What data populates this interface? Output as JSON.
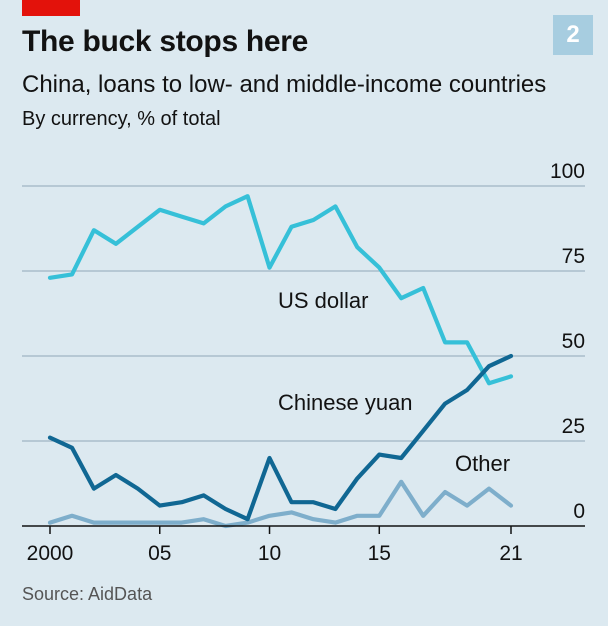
{
  "header": {
    "title": "The buck stops here",
    "subtitle": "China, loans to low- and middle-income countries",
    "unit_note": "By currency, % of total",
    "badge": "2"
  },
  "footer": {
    "source": "Source: AidData"
  },
  "colors": {
    "us_dollar": "#36c0d8",
    "chinese_yuan": "#106793",
    "other": "#7eaecb",
    "gridline": "#9fb5c2",
    "axis": "#121212",
    "brand_red": "#e3120b"
  },
  "chart_data": {
    "type": "line",
    "title": "The buck stops here",
    "subtitle": "China, loans to low- and middle-income countries",
    "ylabel": "By currency, % of total",
    "xlabel": "",
    "x": [
      2000,
      2001,
      2002,
      2003,
      2004,
      2005,
      2006,
      2007,
      2008,
      2009,
      2010,
      2011,
      2012,
      2013,
      2014,
      2015,
      2016,
      2017,
      2018,
      2019,
      2020,
      2021
    ],
    "xticks": [
      2000,
      2005,
      2010,
      2015,
      2021
    ],
    "xtick_labels": [
      "2000",
      "05",
      "10",
      "15",
      "21"
    ],
    "ylim": [
      0,
      100
    ],
    "yticks": [
      0,
      25,
      50,
      75,
      100
    ],
    "ytick_labels": [
      "0",
      "25",
      "50",
      "75",
      "100"
    ],
    "grid": true,
    "series": [
      {
        "name": "US dollar",
        "color": "#36c0d8",
        "values": [
          73,
          74,
          87,
          83,
          88,
          93,
          91,
          89,
          94,
          97,
          76,
          88,
          90,
          94,
          82,
          76,
          67,
          70,
          54,
          54,
          42,
          44
        ]
      },
      {
        "name": "Chinese yuan",
        "color": "#106793",
        "values": [
          26,
          23,
          11,
          15,
          11,
          6,
          7,
          9,
          5,
          2,
          20,
          7,
          7,
          5,
          14,
          21,
          20,
          28,
          36,
          40,
          47,
          50
        ]
      },
      {
        "name": "Other",
        "color": "#7eaecb",
        "values": [
          1,
          3,
          1,
          1,
          1,
          1,
          1,
          2,
          0,
          1,
          3,
          4,
          2,
          1,
          3,
          3,
          13,
          3,
          10,
          6,
          11,
          6
        ]
      }
    ]
  }
}
